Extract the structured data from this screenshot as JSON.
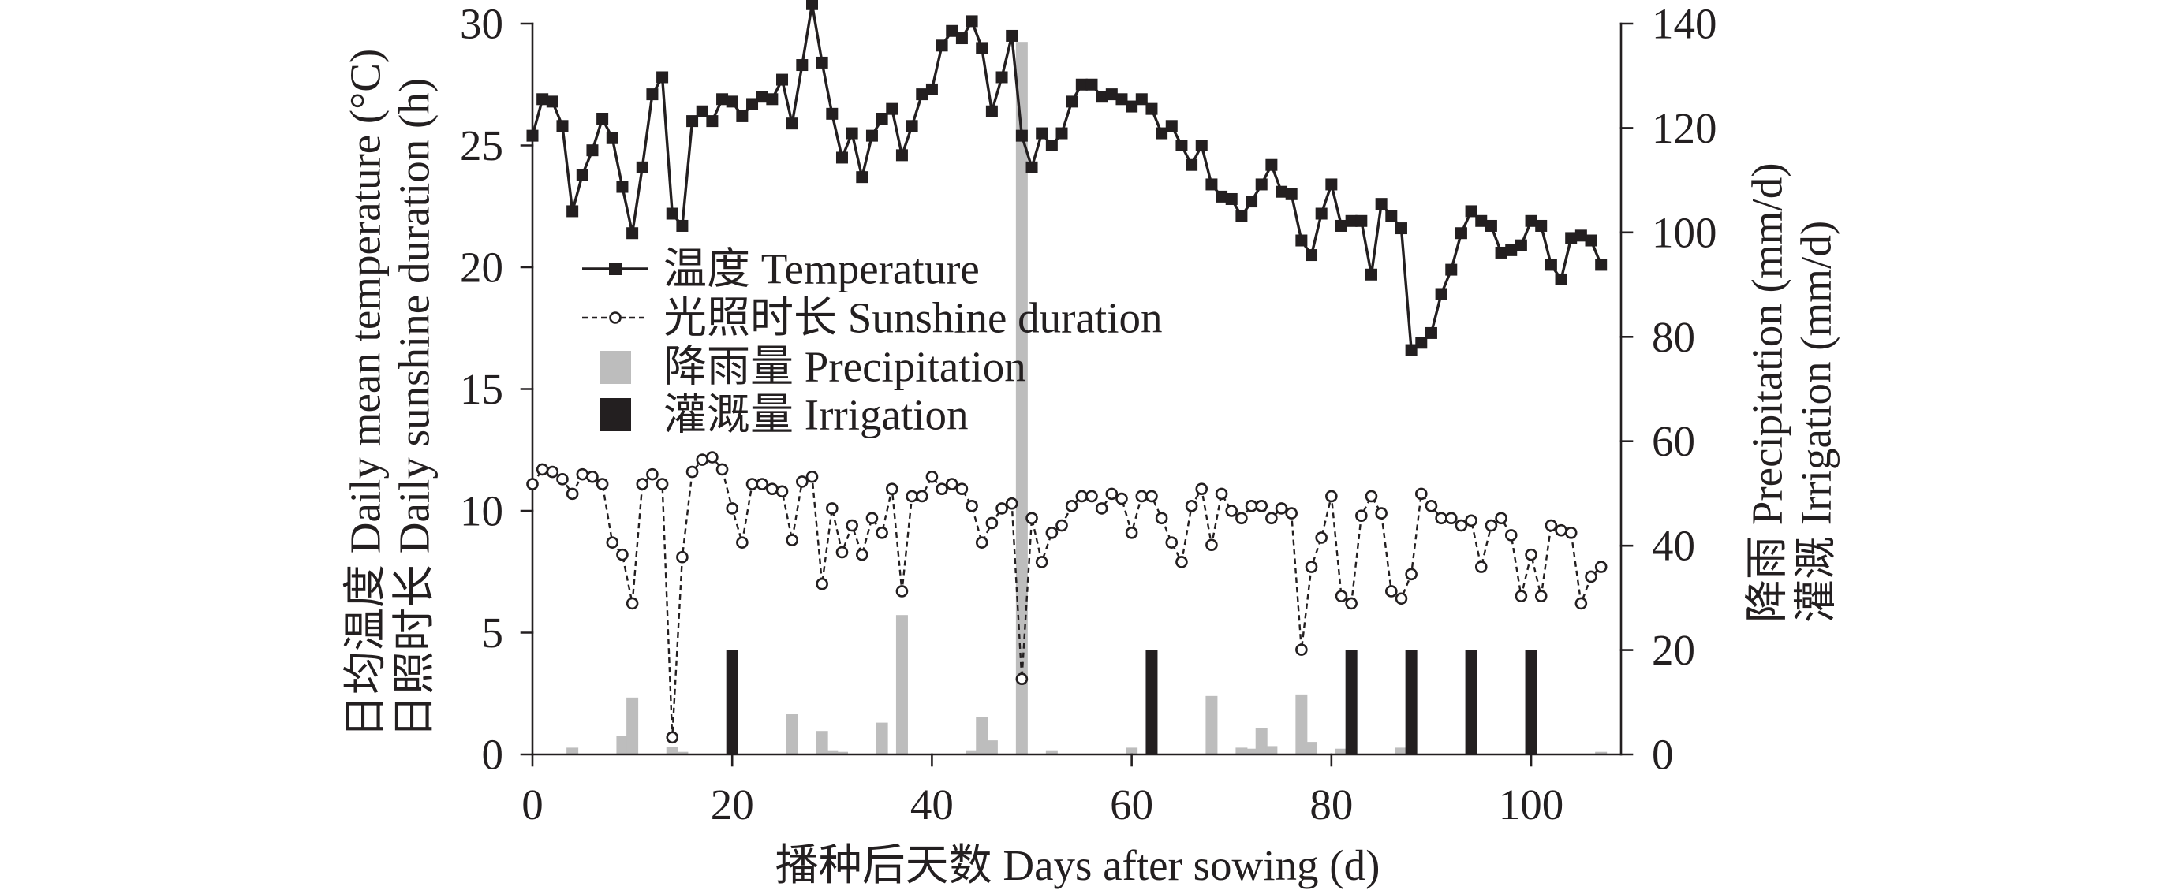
{
  "chart_data": {
    "type": "line",
    "xlabel": "播种后天数 Days after sowing (d)",
    "ylabel_left": [
      "日均温度 Daily mean temperature (°C)",
      "日照时长 Daily sunshine duration (h)"
    ],
    "ylabel_right": [
      "降雨 Precipitation (mm/d)",
      "灌溉 Irrigation (mm/d)"
    ],
    "xlim": [
      0,
      109
    ],
    "ylim_left": [
      0,
      30
    ],
    "ylim_right": [
      0,
      140
    ],
    "xticks": [
      0,
      20,
      40,
      60,
      80,
      100
    ],
    "yticks_left": [
      0,
      5,
      10,
      15,
      20,
      25,
      30
    ],
    "yticks_right": [
      0,
      20,
      40,
      60,
      80,
      100,
      120,
      140
    ],
    "grid": false,
    "legend_position": "upper-left",
    "x": [
      0,
      1,
      2,
      3,
      4,
      5,
      6,
      7,
      8,
      9,
      10,
      11,
      12,
      13,
      14,
      15,
      16,
      17,
      18,
      19,
      20,
      21,
      22,
      23,
      24,
      25,
      26,
      27,
      28,
      29,
      30,
      31,
      32,
      33,
      34,
      35,
      36,
      37,
      38,
      39,
      40,
      41,
      42,
      43,
      44,
      45,
      46,
      47,
      48,
      49,
      50,
      51,
      52,
      53,
      54,
      55,
      56,
      57,
      58,
      59,
      60,
      61,
      62,
      63,
      64,
      65,
      66,
      67,
      68,
      69,
      70,
      71,
      72,
      73,
      74,
      75,
      76,
      77,
      78,
      79,
      80,
      81,
      82,
      83,
      84,
      85,
      86,
      87,
      88,
      89,
      90,
      91,
      92,
      93,
      94,
      95,
      96,
      97,
      98,
      99,
      100,
      101,
      102,
      103,
      104,
      105,
      106,
      107
    ],
    "series": [
      {
        "name": "温度 Temperature",
        "type": "line",
        "axis": "left",
        "marker": "square",
        "dashed": false,
        "color": "#231f20",
        "marker_fill": "#231f20",
        "values": [
          25.4,
          26.9,
          26.8,
          25.8,
          22.3,
          23.8,
          24.8,
          26.1,
          25.3,
          23.3,
          21.4,
          24.1,
          27.1,
          27.8,
          22.2,
          21.7,
          26.0,
          26.4,
          26.0,
          26.9,
          26.8,
          26.2,
          26.7,
          27.0,
          26.9,
          27.7,
          25.9,
          28.3,
          30.8,
          28.4,
          26.3,
          24.5,
          25.5,
          23.7,
          25.4,
          26.1,
          26.5,
          24.6,
          25.8,
          27.1,
          27.3,
          29.1,
          29.7,
          29.4,
          30.1,
          29.0,
          26.4,
          27.8,
          29.5,
          25.4,
          24.1,
          25.5,
          25.0,
          25.5,
          26.8,
          27.5,
          27.5,
          27.0,
          27.1,
          26.9,
          26.6,
          26.9,
          26.5,
          25.5,
          25.8,
          25.0,
          24.2,
          25.0,
          23.4,
          22.9,
          22.8,
          22.1,
          22.7,
          23.4,
          24.2,
          23.1,
          23.0,
          21.1,
          20.5,
          22.2,
          23.4,
          21.7,
          21.9,
          21.9,
          19.7,
          22.6,
          22.1,
          21.6,
          16.6,
          16.9,
          17.3,
          18.9,
          19.9,
          21.4,
          22.3,
          21.9,
          21.7,
          20.6,
          20.7,
          20.9,
          21.9,
          21.7,
          20.1,
          19.5,
          21.2,
          21.3,
          21.1,
          20.1
        ]
      },
      {
        "name": "光照时长 Sunshine duration",
        "type": "line",
        "axis": "left",
        "marker": "circle",
        "dashed": true,
        "color": "#231f20",
        "marker_fill": "#ffffff",
        "values": [
          11.1,
          11.7,
          11.6,
          11.3,
          10.7,
          11.5,
          11.4,
          11.1,
          8.7,
          8.2,
          6.2,
          11.1,
          11.5,
          11.1,
          0.7,
          8.1,
          11.6,
          12.1,
          12.2,
          11.7,
          10.1,
          8.7,
          11.1,
          11.1,
          10.9,
          10.8,
          8.8,
          11.2,
          11.4,
          7.0,
          10.1,
          8.3,
          9.4,
          8.2,
          9.7,
          9.1,
          10.9,
          6.7,
          10.6,
          10.6,
          11.4,
          10.9,
          11.1,
          10.9,
          10.2,
          8.7,
          9.5,
          10.1,
          10.3,
          3.1,
          9.7,
          7.9,
          9.1,
          9.4,
          10.2,
          10.6,
          10.6,
          10.1,
          10.7,
          10.5,
          9.1,
          10.6,
          10.6,
          9.7,
          8.7,
          7.9,
          10.2,
          10.9,
          8.6,
          10.7,
          10.0,
          9.7,
          10.2,
          10.2,
          9.7,
          10.1,
          9.9,
          4.3,
          7.7,
          8.9,
          10.6,
          6.5,
          6.2,
          9.8,
          10.6,
          9.9,
          6.7,
          6.4,
          7.4,
          10.7,
          10.2,
          9.7,
          9.7,
          9.4,
          9.6,
          7.7,
          9.4,
          9.7,
          9.0,
          6.5,
          8.2,
          6.5,
          9.4,
          9.2,
          9.1,
          6.2,
          7.3,
          7.7
        ]
      },
      {
        "name": "降雨量 Precipitation",
        "type": "bar",
        "axis": "right",
        "color": "#bdbdbd",
        "x": [
          4,
          9,
          10,
          14,
          15,
          26,
          29,
          30,
          31,
          35,
          37,
          44,
          45,
          46,
          49,
          52,
          60,
          68,
          71,
          72,
          73,
          74,
          77,
          78,
          81,
          87,
          107
        ],
        "values": [
          1.3,
          3.5,
          10.9,
          1.5,
          0.5,
          7.7,
          4.5,
          0.8,
          0.5,
          6.1,
          26.7,
          0.8,
          7.2,
          2.7,
          136.5,
          0.8,
          1.3,
          11.2,
          1.3,
          1.1,
          5.1,
          1.6,
          11.5,
          2.4,
          1.1,
          1.3,
          0.5
        ]
      },
      {
        "name": "灌溉量 Irrigation",
        "type": "bar",
        "axis": "right",
        "color": "#231f20",
        "x": [
          20,
          62,
          82,
          88,
          94,
          100
        ],
        "values": [
          20,
          20,
          20,
          20,
          20,
          20
        ]
      }
    ]
  }
}
